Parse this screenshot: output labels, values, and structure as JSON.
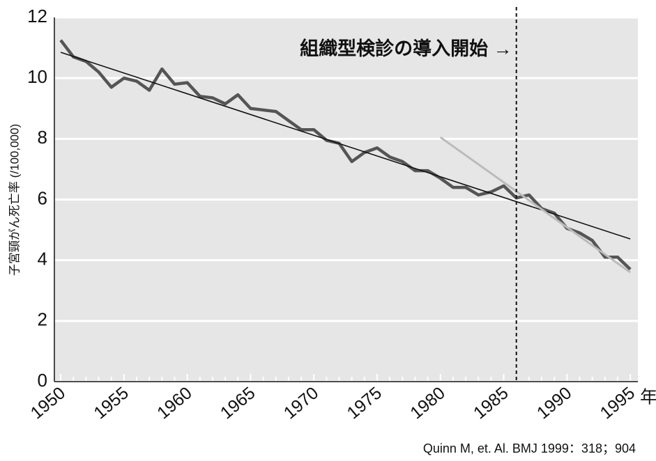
{
  "chart_data": {
    "type": "line",
    "y_label": "子宮頸がん死亡率 (/100,000)",
    "x_unit": "年",
    "annotation": "組織型検診の導入開始 →",
    "annotation_x": 1986,
    "source": "Quinn M, et. Al. BMJ 1999：318；904",
    "x": [
      1950,
      1951,
      1952,
      1953,
      1954,
      1955,
      1956,
      1957,
      1958,
      1959,
      1960,
      1961,
      1962,
      1963,
      1964,
      1965,
      1966,
      1967,
      1968,
      1969,
      1970,
      1971,
      1972,
      1973,
      1974,
      1975,
      1976,
      1977,
      1978,
      1979,
      1980,
      1981,
      1982,
      1983,
      1984,
      1985,
      1986,
      1987,
      1988,
      1989,
      1990,
      1991,
      1992,
      1993,
      1994,
      1995
    ],
    "series": [
      {
        "color": "#555555",
        "values": [
          11.25,
          10.7,
          10.55,
          10.2,
          9.7,
          10.0,
          9.9,
          9.6,
          10.3,
          9.8,
          9.85,
          9.4,
          9.35,
          9.15,
          9.45,
          9.0,
          8.95,
          8.9,
          8.6,
          8.3,
          8.3,
          7.95,
          7.85,
          7.25,
          7.55,
          7.7,
          7.4,
          7.25,
          6.95,
          6.95,
          6.7,
          6.4,
          6.4,
          6.15,
          6.25,
          6.45,
          6.05,
          6.15,
          5.7,
          5.55,
          5.05,
          4.9,
          4.65,
          4.1,
          4.1,
          3.7
        ]
      }
    ],
    "trend_lines": [
      {
        "color": "#111111",
        "x": [
          1950,
          1995
        ],
        "values": [
          10.85,
          4.7
        ]
      },
      {
        "color": "#bbbbbb",
        "x": [
          1980,
          1995
        ],
        "values": [
          8.05,
          3.6
        ]
      }
    ],
    "xlim": [
      1949.5,
      1995.6
    ],
    "ylim": [
      0,
      12
    ],
    "xticks": [
      1950,
      1955,
      1960,
      1965,
      1970,
      1975,
      1980,
      1985,
      1990,
      1995
    ],
    "xticks_minor": [
      1951,
      1952,
      1953,
      1954,
      1956,
      1957,
      1958,
      1959,
      1961,
      1962,
      1963,
      1964,
      1966,
      1967,
      1968,
      1969,
      1971,
      1972,
      1973,
      1974,
      1976,
      1977,
      1978,
      1979,
      1981,
      1982,
      1983,
      1984,
      1986,
      1987,
      1988,
      1989,
      1991,
      1992,
      1993,
      1994
    ],
    "yticks": [
      0,
      2,
      4,
      6,
      8,
      10,
      12
    ],
    "grid": true
  }
}
